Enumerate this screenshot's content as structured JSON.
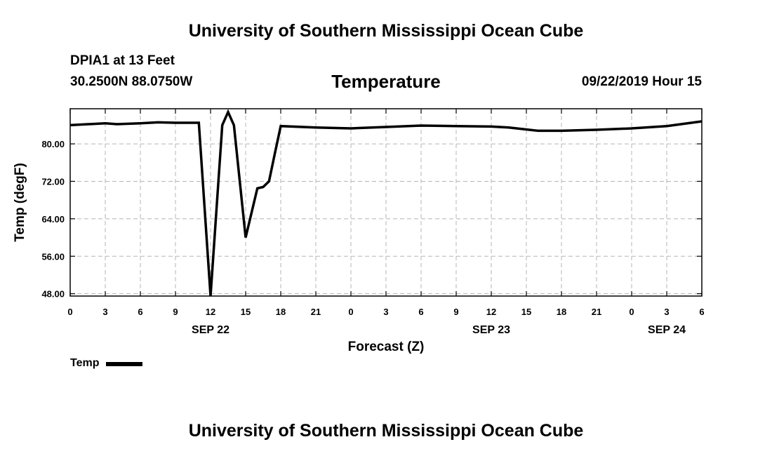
{
  "header": {
    "title": "University of Southern Mississippi Ocean Cube",
    "station": "DPIA1 at 13 Feet",
    "coordinates": "30.2500N 88.0750W",
    "valid_time": "09/22/2019 Hour 15"
  },
  "footer": {
    "title": "University of Southern Mississippi Ocean Cube"
  },
  "legend": {
    "label": "Temp"
  },
  "chart_data": {
    "type": "line",
    "title": "Temperature",
    "xlabel": "Forecast (Z)",
    "ylabel": "Temp (degF)",
    "ylim": [
      47.5,
      87.5
    ],
    "xlim": [
      0,
      54
    ],
    "yticks": [
      "48.00",
      "56.00",
      "64.00",
      "72.00",
      "80.00"
    ],
    "ytick_values": [
      48,
      56,
      64,
      72,
      80
    ],
    "xticks": [
      "0",
      "3",
      "6",
      "9",
      "12",
      "15",
      "18",
      "21",
      "0",
      "3",
      "6",
      "9",
      "12",
      "15",
      "18",
      "21",
      "0",
      "3",
      "6"
    ],
    "xtick_values": [
      0,
      3,
      6,
      9,
      12,
      15,
      18,
      21,
      24,
      27,
      30,
      33,
      36,
      39,
      42,
      45,
      48,
      51,
      54
    ],
    "date_labels": [
      {
        "label": "SEP 22",
        "at": 12
      },
      {
        "label": "SEP 23",
        "at": 36
      },
      {
        "label": "SEP 24",
        "at": 51
      }
    ],
    "grid": true,
    "series": [
      {
        "name": "Temp",
        "color": "#000000",
        "x": [
          0,
          3,
          4,
          6,
          7.5,
          9,
          11,
          12,
          13,
          13.5,
          14,
          15,
          16,
          16.5,
          17,
          17.5,
          18,
          21,
          24,
          27,
          30,
          33,
          36,
          37.5,
          40,
          42,
          45,
          48,
          51,
          54
        ],
        "y": [
          84.0,
          84.4,
          84.2,
          84.4,
          84.6,
          84.5,
          84.5,
          47.5,
          84.0,
          86.8,
          84.0,
          60.0,
          70.5,
          70.8,
          72.0,
          78.0,
          83.8,
          83.5,
          83.3,
          83.6,
          83.9,
          83.8,
          83.7,
          83.5,
          82.8,
          82.8,
          83.0,
          83.3,
          83.8,
          84.8
        ]
      }
    ]
  }
}
